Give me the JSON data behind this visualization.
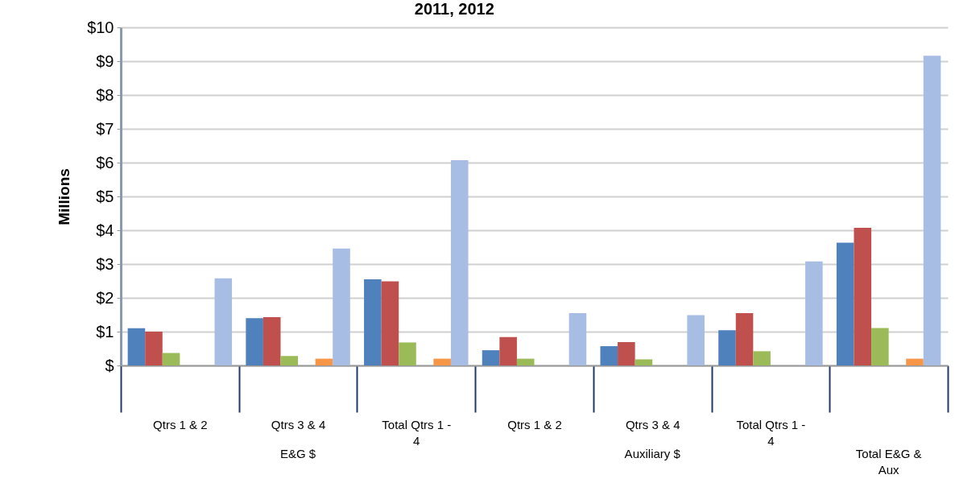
{
  "chart_data": {
    "type": "bar",
    "title": "2011, 2012",
    "ylabel": "Millions",
    "categories": [
      "Qtrs  1 & 2",
      "Qtrs  3 & 4",
      "Total Qtrs 1 - 4",
      "Qtrs  1 & 2",
      "Qtrs 3 & 4",
      "Total Qtrs 1 - 4",
      null
    ],
    "annotations": [
      "E&G $",
      "Auxiliary $",
      "Total E&G & Aux"
    ],
    "series": [
      {
        "color": "#4f81bd",
        "values": [
          1.1,
          1.4,
          2.55,
          0.45,
          0.57,
          1.04,
          3.63
        ]
      },
      {
        "color": "#c0504d",
        "values": [
          1.0,
          1.43,
          2.49,
          0.84,
          0.69,
          1.55,
          4.07
        ]
      },
      {
        "color": "#9bbb59",
        "values": [
          0.37,
          0.28,
          0.68,
          0.2,
          0.18,
          0.42,
          1.11
        ]
      },
      {
        "color": "#8064a2",
        "values": [
          0,
          0,
          0,
          0,
          0,
          0,
          0
        ]
      },
      {
        "color": "#f79646",
        "values": [
          0,
          0.2,
          0.2,
          0,
          0,
          0,
          0.2
        ]
      },
      {
        "color": "#a7bde3",
        "values": [
          2.58,
          3.46,
          6.07,
          1.55,
          1.49,
          3.08,
          9.16
        ]
      }
    ],
    "ylim": [
      0,
      10
    ],
    "yticks": [
      {
        "value": 0,
        "label": "$"
      },
      {
        "value": 1,
        "label": "$1"
      },
      {
        "value": 2,
        "label": "$2"
      },
      {
        "value": 3,
        "label": "$3"
      },
      {
        "value": 4,
        "label": "$4"
      },
      {
        "value": 5,
        "label": "$5"
      },
      {
        "value": 6,
        "label": "$6"
      },
      {
        "value": 7,
        "label": "$7"
      },
      {
        "value": 8,
        "label": "$8"
      },
      {
        "value": 9,
        "label": "$9"
      },
      {
        "value": 10,
        "label": "$10"
      }
    ],
    "grid": "y"
  }
}
